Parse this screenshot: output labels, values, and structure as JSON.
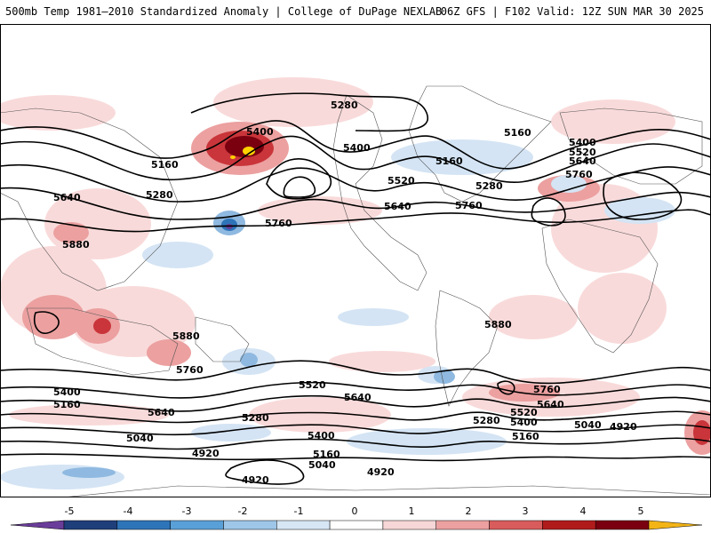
{
  "header": {
    "left": "500mb Temp 1981–2010 Standardized Anomaly | College of DuPage NEXLAB",
    "right": "06Z GFS | F102 Valid: 12Z SUN MAR 30 2025"
  },
  "contour_labels": [
    "5280",
    "5400",
    "5160",
    "5400",
    "5160",
    "5280",
    "5520",
    "5640",
    "5640",
    "5760",
    "5880",
    "5760",
    "5400",
    "5520",
    "5640",
    "5760",
    "5280",
    "5160",
    "5880",
    "5880",
    "5760",
    "5400",
    "5160",
    "5640",
    "5040",
    "4920",
    "5520",
    "5640",
    "5280",
    "5400",
    "5160",
    "5040",
    "4920",
    "4920",
    "5760",
    "5640",
    "5520",
    "5400",
    "5280",
    "5040",
    "4920",
    "5160"
  ],
  "colorbar": {
    "ticks": [
      "-5",
      "-4",
      "-3",
      "-2",
      "-1",
      "0",
      "1",
      "2",
      "3",
      "4",
      "5"
    ],
    "colors": [
      "#6a3d9a",
      "#1f3f7a",
      "#2e74b8",
      "#5aa0d8",
      "#9ec6e8",
      "#d6e6f4",
      "#ffffff",
      "#f6d6d6",
      "#eca0a0",
      "#d95c5c",
      "#b01c1c",
      "#7a0010",
      "#f3b416"
    ]
  },
  "legend_colors": {
    "strong_positive": "#a50f15",
    "positive": "#e8898a",
    "weak_positive": "#f9dada",
    "weak_negative": "#d4e4f4",
    "negative": "#8fb9e0",
    "extreme": "#ffd200"
  }
}
